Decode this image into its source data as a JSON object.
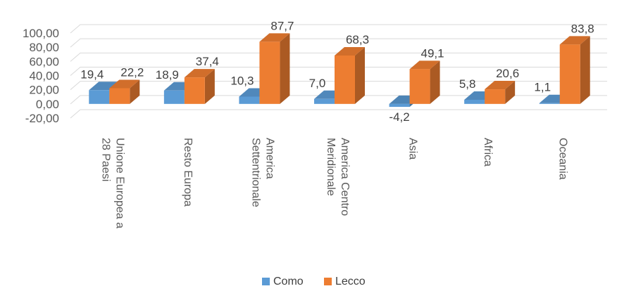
{
  "chart_data": {
    "type": "bar",
    "style": "3d-clustered-column",
    "categories": [
      [
        "Unione Europea a",
        "28 Paesi"
      ],
      [
        "Resto Europa"
      ],
      [
        "America",
        "Settentrionale"
      ],
      [
        "America Centro",
        "Meridionale"
      ],
      [
        "Asia"
      ],
      [
        "Africa"
      ],
      [
        "Oceania"
      ]
    ],
    "series": [
      {
        "name": "Como",
        "color": "#5B9BD5",
        "values": [
          19.4,
          18.9,
          10.3,
          7.0,
          -4.2,
          5.8,
          1.1
        ],
        "labels": [
          "19,4",
          "18,9",
          "10,3",
          "7,0",
          "-4,2",
          "5,8",
          "1,1"
        ]
      },
      {
        "name": "Lecco",
        "color": "#ED7D31",
        "values": [
          22.2,
          37.4,
          87.7,
          68.3,
          49.1,
          20.6,
          83.8
        ],
        "labels": [
          "22,2",
          "37,4",
          "87,7",
          "68,3",
          "49,1",
          "20,6",
          "83,8"
        ]
      }
    ],
    "y_ticks": [
      "100,00",
      "80,00",
      "60,00",
      "40,00",
      "20,00",
      "0,00",
      "-20,00"
    ],
    "ylim": [
      -20,
      100
    ],
    "grid": true,
    "legend_position": "bottom"
  }
}
